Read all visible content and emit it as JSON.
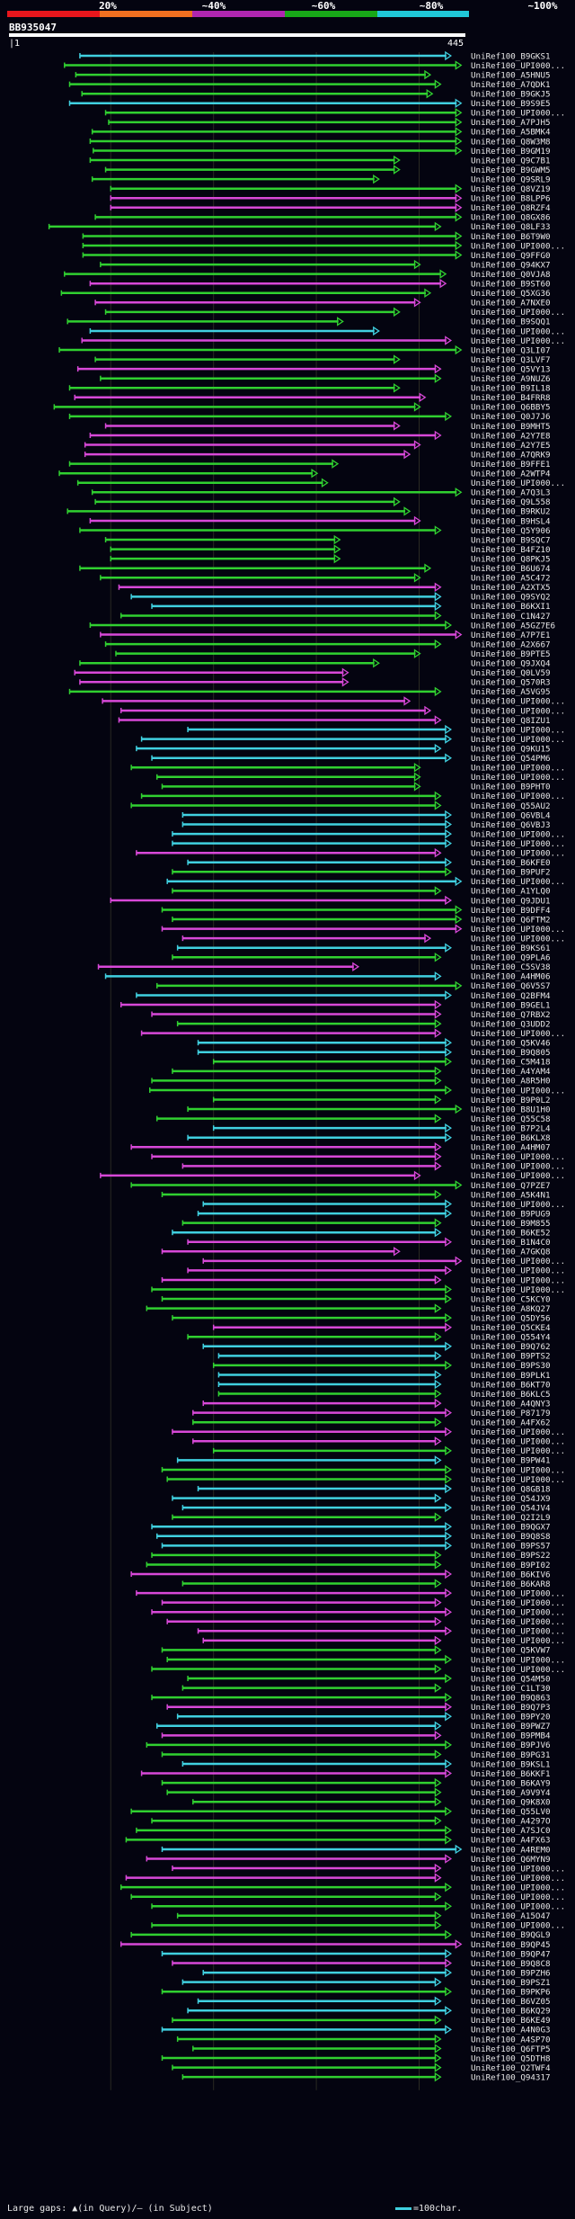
{
  "header": {
    "legend_labels": [
      "20%",
      "~40%",
      "~60%",
      "~80%",
      "~100%"
    ],
    "legend_colors": [
      "#e8161c",
      "#f07020",
      "#b026b0",
      "#18a818",
      "#20c8d8"
    ],
    "query_id": "BB935047",
    "query_start": "1",
    "query_end": "445"
  },
  "footer": {
    "large_gaps_text": "Large gaps: ▲(in Query)/– (in Subject)",
    "scale_text": "=100char."
  },
  "chart_data": {
    "type": "alignment-overview",
    "title": "BB935047",
    "query_range": [
      1,
      445
    ],
    "color_key": {
      "P": "#d848d8",
      "G": "#30d030",
      "C": "#40d0e0"
    },
    "hits": [
      [
        "UniRef100_B9GKS1",
        "C",
        70,
        430
      ],
      [
        "UniRef100_UPI000...",
        "G",
        55,
        440
      ],
      [
        "UniRef100_A5HNU5",
        "G",
        66,
        410
      ],
      [
        "UniRef100_A7QDK1",
        "G",
        60,
        420
      ],
      [
        "UniRef100_B9GKJ5",
        "G",
        72,
        412
      ],
      [
        "UniRef100_B9S9E5",
        "C",
        60,
        440
      ],
      [
        "UniRef100_UPI000...",
        "G",
        95,
        440
      ],
      [
        "UniRef100_A7PJH5",
        "G",
        98,
        440
      ],
      [
        "UniRef100_A5BMK4",
        "G",
        82,
        440
      ],
      [
        "UniRef100_Q8W3M8",
        "G",
        80,
        440
      ],
      [
        "UniRef100_B9GM19",
        "G",
        83,
        440
      ],
      [
        "UniRef100_Q9C7B1",
        "G",
        80,
        380
      ],
      [
        "UniRef100_B9GWM5",
        "G",
        95,
        380
      ],
      [
        "UniRef100_Q9SRL9",
        "G",
        82,
        360
      ],
      [
        "UniRef100_Q8VZ19",
        "G",
        100,
        440
      ],
      [
        "UniRef100_B8LPP6",
        "P",
        100,
        440
      ],
      [
        "UniRef100_Q8RZF4",
        "P",
        100,
        440
      ],
      [
        "UniRef100_Q8GX86",
        "G",
        85,
        440
      ],
      [
        "UniRef100_Q8LF33",
        "G",
        40,
        420
      ],
      [
        "UniRef100_B6T9W0",
        "G",
        73,
        440
      ],
      [
        "UniRef100_UPI000...",
        "G",
        73,
        440
      ],
      [
        "UniRef100_Q9FFG0",
        "G",
        73,
        440
      ],
      [
        "UniRef100_Q94KX7",
        "G",
        90,
        400
      ],
      [
        "UniRef100_Q0VJA8",
        "G",
        55,
        425
      ],
      [
        "UniRef100_B9ST60",
        "P",
        80,
        425
      ],
      [
        "UniRef100_Q5XG36",
        "G",
        52,
        410
      ],
      [
        "UniRef100_A7NXE0",
        "P",
        85,
        400
      ],
      [
        "UniRef100_UPI000...",
        "G",
        95,
        380
      ],
      [
        "UniRef100_B9SQQ1",
        "G",
        58,
        325
      ],
      [
        "UniRef100_UPI000...",
        "C",
        80,
        360
      ],
      [
        "UniRef100_UPI000...",
        "P",
        72,
        430
      ],
      [
        "UniRef100_Q3LI07",
        "G",
        50,
        440
      ],
      [
        "UniRef100_Q3LVF7",
        "G",
        85,
        380
      ],
      [
        "UniRef100_Q5VY13",
        "P",
        68,
        420
      ],
      [
        "UniRef100_A9NUZ6",
        "G",
        90,
        420
      ],
      [
        "UniRef100_B9IL18",
        "G",
        60,
        380
      ],
      [
        "UniRef100_B4FRR8",
        "P",
        65,
        405
      ],
      [
        "UniRef100_Q6BBY5",
        "G",
        45,
        400
      ],
      [
        "UniRef100_Q0J7J6",
        "G",
        60,
        430
      ],
      [
        "UniRef100_B9MHT5",
        "P",
        95,
        380
      ],
      [
        "UniRef100_A2Y7E8",
        "P",
        80,
        420
      ],
      [
        "UniRef100_A2Y7E5",
        "P",
        75,
        400
      ],
      [
        "UniRef100_A7QRK9",
        "P",
        75,
        390
      ],
      [
        "UniRef100_B9FFE1",
        "G",
        60,
        320
      ],
      [
        "UniRef100_A2WTP4",
        "G",
        50,
        300
      ],
      [
        "UniRef100_UPI000...",
        "G",
        68,
        310
      ],
      [
        "UniRef100_A7Q3L3",
        "G",
        82,
        440
      ],
      [
        "UniRef100_Q9L558",
        "G",
        85,
        380
      ],
      [
        "UniRef100_B9RKU2",
        "G",
        58,
        390
      ],
      [
        "UniRef100_B9HSL4",
        "P",
        80,
        400
      ],
      [
        "UniRef100_Q5Y906",
        "G",
        70,
        420
      ],
      [
        "UniRef100_B9SQC7",
        "G",
        95,
        322
      ],
      [
        "UniRef100_B4FZ10",
        "G",
        100,
        322
      ],
      [
        "UniRef100_Q8PKJ5",
        "G",
        100,
        322
      ],
      [
        "UniRef100_B6U674",
        "G",
        70,
        410
      ],
      [
        "UniRef100_A5C472",
        "G",
        90,
        400
      ],
      [
        "UniRef100_A2XTX5",
        "P",
        108,
        420
      ],
      [
        "UniRef100_Q9SYQ2",
        "C",
        120,
        420
      ],
      [
        "UniRef100_B6KXI1",
        "C",
        140,
        420
      ],
      [
        "UniRef100_C1N427",
        "G",
        110,
        420
      ],
      [
        "UniRef100_A5GZ7E6",
        "G",
        80,
        430
      ],
      [
        "UniRef100_A7P7E1",
        "P",
        90,
        440
      ],
      [
        "UniRef100_A2X667",
        "G",
        95,
        420
      ],
      [
        "UniRef100_B9PTE5",
        "G",
        105,
        400
      ],
      [
        "UniRef100_Q9JXQ4",
        "G",
        70,
        360
      ],
      [
        "UniRef100_Q0LV59",
        "P",
        65,
        330
      ],
      [
        "UniRef100_Q570R3",
        "P",
        70,
        330
      ],
      [
        "UniRef100_A5VG95",
        "G",
        60,
        420
      ],
      [
        "UniRef100_UPI000...",
        "P",
        92,
        390
      ],
      [
        "UniRef100_UPI000...",
        "P",
        110,
        410
      ],
      [
        "UniRef100_Q8IZU1",
        "P",
        108,
        420
      ],
      [
        "UniRef100_UPI000...",
        "C",
        175,
        430
      ],
      [
        "UniRef100_UPI000...",
        "C",
        130,
        430
      ],
      [
        "UniRef100_Q9KU15",
        "C",
        125,
        420
      ],
      [
        "UniRef100_Q54PM6",
        "C",
        140,
        430
      ],
      [
        "UniRef100_UPI000...",
        "G",
        120,
        400
      ],
      [
        "UniRef100_UPI000...",
        "G",
        145,
        400
      ],
      [
        "UniRef100_B9PHT0",
        "G",
        150,
        400
      ],
      [
        "UniRef100_UPI000...",
        "G",
        130,
        420
      ],
      [
        "UniRef100_Q55AU2",
        "G",
        120,
        420
      ],
      [
        "UniRef100_Q6VBL4",
        "C",
        170,
        430
      ],
      [
        "UniRef100_Q6VBJ3",
        "C",
        170,
        430
      ],
      [
        "UniRef100_UPI000...",
        "C",
        160,
        430
      ],
      [
        "UniRef100_UPI000...",
        "C",
        160,
        430
      ],
      [
        "UniRef100_UPI000...",
        "P",
        125,
        420
      ],
      [
        "UniRef100_B6KFE0",
        "C",
        175,
        430
      ],
      [
        "UniRef100_B9PUF2",
        "G",
        160,
        430
      ],
      [
        "UniRef100_UPI000...",
        "C",
        155,
        440
      ],
      [
        "UniRef100_A1YLQ0",
        "G",
        160,
        420
      ],
      [
        "UniRef100_Q9JDU1",
        "P",
        100,
        430
      ],
      [
        "UniRef100_B9DFF4",
        "G",
        150,
        440
      ],
      [
        "UniRef100_Q6FTM2",
        "G",
        160,
        440
      ],
      [
        "UniRef100_UPI000...",
        "P",
        150,
        440
      ],
      [
        "UniRef100_UPI000...",
        "P",
        170,
        410
      ],
      [
        "UniRef100_B9KS61",
        "C",
        165,
        430
      ],
      [
        "UniRef100_Q9PLA6",
        "G",
        160,
        420
      ],
      [
        "UniRef100_C5SV38",
        "P",
        88,
        340
      ],
      [
        "UniRef100_A4HM06",
        "C",
        95,
        420
      ],
      [
        "UniRef100_Q6V5S7",
        "G",
        145,
        440
      ],
      [
        "UniRef100_Q2BFM4",
        "C",
        125,
        430
      ],
      [
        "UniRef100_B9GEL1",
        "P",
        110,
        420
      ],
      [
        "UniRef100_Q7RBX2",
        "P",
        140,
        420
      ],
      [
        "UniRef100_Q3UDD2",
        "G",
        165,
        420
      ],
      [
        "UniRef100_UPI000...",
        "P",
        130,
        420
      ],
      [
        "UniRef100_Q5KV46",
        "C",
        185,
        430
      ],
      [
        "UniRef100_B9Q805",
        "C",
        185,
        430
      ],
      [
        "UniRef100_C5M418",
        "G",
        200,
        430
      ],
      [
        "UniRef100_A4YAM4",
        "G",
        160,
        420
      ],
      [
        "UniRef100_A8R5H0",
        "G",
        140,
        420
      ],
      [
        "UniRef100_UPI000...",
        "G",
        138,
        430
      ],
      [
        "UniRef100_B9P0L2",
        "G",
        200,
        420
      ],
      [
        "UniRef100_B8U1H0",
        "G",
        175,
        440
      ],
      [
        "UniRef100_Q55C58",
        "G",
        145,
        420
      ],
      [
        "UniRef100_B7P2L4",
        "C",
        200,
        430
      ],
      [
        "UniRef100_B6KLX8",
        "C",
        175,
        430
      ],
      [
        "UniRef100_A4HM07",
        "P",
        120,
        420
      ],
      [
        "UniRef100_UPI000...",
        "P",
        140,
        420
      ],
      [
        "UniRef100_UPI000...",
        "P",
        170,
        420
      ],
      [
        "UniRef100_UPI000...",
        "P",
        90,
        400
      ],
      [
        "UniRef100_Q7PZE7",
        "G",
        120,
        440
      ],
      [
        "UniRef100_A5K4N1",
        "G",
        150,
        420
      ],
      [
        "UniRef100_UPI000...",
        "C",
        190,
        430
      ],
      [
        "UniRef100_B9PUG9",
        "C",
        185,
        430
      ],
      [
        "UniRef100_B9M855",
        "G",
        170,
        420
      ],
      [
        "UniRef100_B6KE52",
        "C",
        160,
        420
      ],
      [
        "UniRef100_B1N4C0",
        "P",
        175,
        430
      ],
      [
        "UniRef100_A7GKQ8",
        "P",
        150,
        380
      ],
      [
        "UniRef100_UPI000...",
        "P",
        190,
        440
      ],
      [
        "UniRef100_UPI000...",
        "P",
        175,
        430
      ],
      [
        "UniRef100_UPI000...",
        "P",
        150,
        420
      ],
      [
        "UniRef100_UPI000...",
        "G",
        140,
        430
      ],
      [
        "UniRef100_C5KCY0",
        "G",
        150,
        430
      ],
      [
        "UniRef100_A8KQ27",
        "G",
        135,
        420
      ],
      [
        "UniRef100_Q5DY56",
        "G",
        160,
        430
      ],
      [
        "UniRef100_Q5CKE4",
        "P",
        200,
        430
      ],
      [
        "UniRef100_Q554Y4",
        "G",
        175,
        420
      ],
      [
        "UniRef100_B9Q762",
        "C",
        190,
        430
      ],
      [
        "UniRef100_B9PTS2",
        "C",
        205,
        420
      ],
      [
        "UniRef100_B9PS30",
        "G",
        200,
        430
      ],
      [
        "UniRef100_B9PLK1",
        "C",
        205,
        420
      ],
      [
        "UniRef100_B6KT70",
        "C",
        205,
        420
      ],
      [
        "UniRef100_B6KLC5",
        "G",
        205,
        420
      ],
      [
        "UniRef100_A4QNY3",
        "P",
        190,
        420
      ],
      [
        "UniRef100_P87179",
        "P",
        180,
        430
      ],
      [
        "UniRef100_A4FX62",
        "G",
        180,
        420
      ],
      [
        "UniRef100_UPI000...",
        "P",
        160,
        430
      ],
      [
        "UniRef100_UPI000...",
        "P",
        180,
        420
      ],
      [
        "UniRef100_UPI000...",
        "G",
        200,
        430
      ],
      [
        "UniRef100_B9PW41",
        "C",
        165,
        420
      ],
      [
        "UniRef100_UPI000...",
        "G",
        150,
        430
      ],
      [
        "UniRef100_UPI000...",
        "G",
        155,
        430
      ],
      [
        "UniRef100_Q8GB18",
        "C",
        185,
        430
      ],
      [
        "UniRef100_Q54JX9",
        "C",
        160,
        420
      ],
      [
        "UniRef100_Q54JV4",
        "C",
        170,
        430
      ],
      [
        "UniRef100_Q2I2L9",
        "G",
        160,
        420
      ],
      [
        "UniRef100_B9QGX7",
        "C",
        140,
        430
      ],
      [
        "UniRef100_B9Q8S8",
        "C",
        145,
        430
      ],
      [
        "UniRef100_B9PS57",
        "C",
        150,
        430
      ],
      [
        "UniRef100_B9PS22",
        "G",
        140,
        420
      ],
      [
        "UniRef100_B9PI02",
        "G",
        135,
        420
      ],
      [
        "UniRef100_B6KIV6",
        "P",
        120,
        430
      ],
      [
        "UniRef100_B6KAR8",
        "G",
        170,
        420
      ],
      [
        "UniRef100_UPI000...",
        "P",
        125,
        430
      ],
      [
        "UniRef100_UPI000...",
        "P",
        150,
        420
      ],
      [
        "UniRef100_UPI000...",
        "P",
        140,
        430
      ],
      [
        "UniRef100_UPI000...",
        "P",
        155,
        420
      ],
      [
        "UniRef100_UPI000...",
        "P",
        185,
        430
      ],
      [
        "UniRef100_UPI000...",
        "P",
        190,
        420
      ],
      [
        "UniRef100_Q5KVW7",
        "G",
        150,
        420
      ],
      [
        "UniRef100_UPI000...",
        "G",
        155,
        430
      ],
      [
        "UniRef100_UPI000...",
        "G",
        140,
        420
      ],
      [
        "UniRef100_Q54M50",
        "G",
        175,
        430
      ],
      [
        "UniRef100_C1LT30",
        "G",
        170,
        420
      ],
      [
        "UniRef100_B9Q863",
        "G",
        140,
        430
      ],
      [
        "UniRef100_B9Q7P3",
        "P",
        155,
        430
      ],
      [
        "UniRef100_B9PY20",
        "C",
        165,
        430
      ],
      [
        "UniRef100_B9PWZ7",
        "C",
        145,
        420
      ],
      [
        "UniRef100_B9PMB4",
        "P",
        150,
        420
      ],
      [
        "UniRef100_B9PJV6",
        "G",
        135,
        430
      ],
      [
        "UniRef100_B9PG31",
        "G",
        150,
        420
      ],
      [
        "UniRef100_B9KSL1",
        "C",
        170,
        430
      ],
      [
        "UniRef100_B6KKF1",
        "P",
        130,
        430
      ],
      [
        "UniRef100_B6KAY9",
        "G",
        150,
        420
      ],
      [
        "UniRef100_A9V9Y4",
        "G",
        155,
        420
      ],
      [
        "UniRef100_Q9K8X0",
        "G",
        180,
        420
      ],
      [
        "UniRef100_Q55LV0",
        "G",
        120,
        430
      ],
      [
        "UniRef100_A4297O",
        "G",
        140,
        420
      ],
      [
        "UniRef100_A7SJC0",
        "G",
        125,
        430
      ],
      [
        "UniRef100_A4FX63",
        "G",
        115,
        430
      ],
      [
        "UniRef100_A4REM0",
        "C",
        150,
        440
      ],
      [
        "UniRef100_Q6MYN9",
        "P",
        135,
        430
      ],
      [
        "UniRef100_UPI000...",
        "P",
        160,
        420
      ],
      [
        "UniRef100_UPI000...",
        "P",
        115,
        420
      ],
      [
        "UniRef100_UPI000...",
        "G",
        110,
        430
      ],
      [
        "UniRef100_UPI000...",
        "G",
        120,
        420
      ],
      [
        "UniRef100_UPI000...",
        "G",
        140,
        430
      ],
      [
        "UniRef100_A15O47",
        "G",
        165,
        420
      ],
      [
        "UniRef100_UPI000...",
        "G",
        140,
        420
      ],
      [
        "UniRef100_B9QGL9",
        "G",
        120,
        430
      ],
      [
        "UniRef100_B9QP45",
        "P",
        110,
        440
      ],
      [
        "UniRef100_B9QP47",
        "C",
        150,
        430
      ],
      [
        "UniRef100_B9Q8C8",
        "P",
        160,
        430
      ],
      [
        "UniRef100_B9PZH6",
        "C",
        190,
        430
      ],
      [
        "UniRef100_B9PSZ1",
        "C",
        170,
        420
      ],
      [
        "UniRef100_B9PKP6",
        "G",
        150,
        430
      ],
      [
        "UniRef100_B6VZ05",
        "C",
        185,
        420
      ],
      [
        "UniRef100_B6KQ29",
        "C",
        175,
        430
      ],
      [
        "UniRef100_B6KE49",
        "G",
        160,
        420
      ],
      [
        "UniRef100_A4N0G3",
        "C",
        150,
        430
      ],
      [
        "UniRef100_A4SP70",
        "G",
        165,
        420
      ],
      [
        "UniRef100_Q6FTP5",
        "G",
        180,
        420
      ],
      [
        "UniRef100_Q5DTH8",
        "G",
        150,
        420
      ],
      [
        "UniRef100_Q2TWF4",
        "G",
        160,
        420
      ],
      [
        "UniRef100_Q94317",
        "G",
        170,
        420
      ]
    ]
  }
}
